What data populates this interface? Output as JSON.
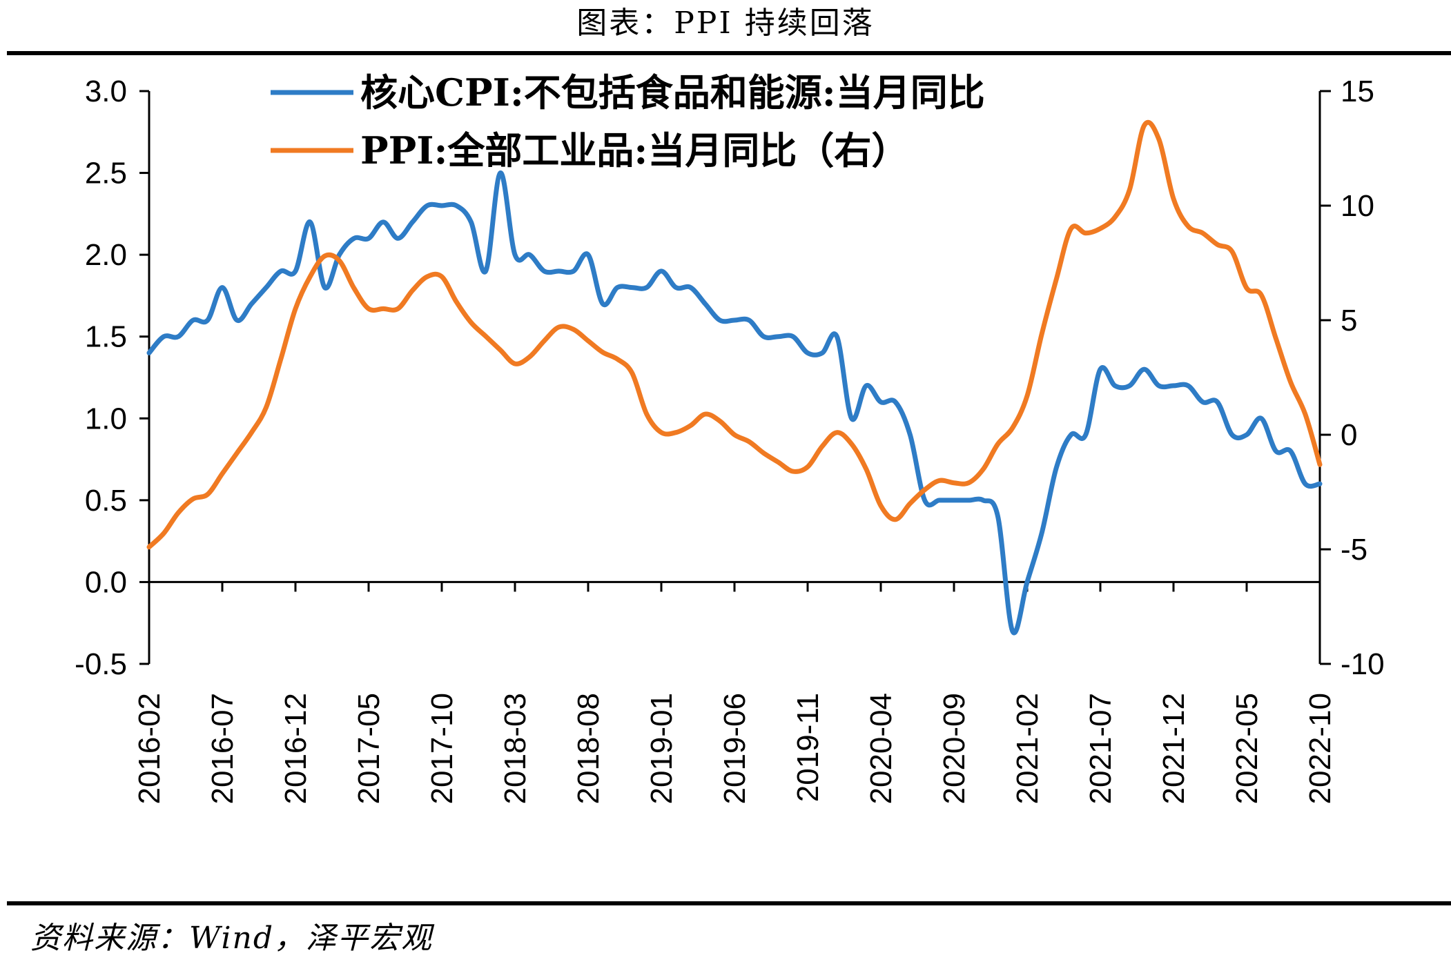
{
  "title": "图表：PPI 持续回落",
  "source": "资料来源：Wind，泽平宏观",
  "colors": {
    "core_cpi": "#2E7CC6",
    "ppi": "#F07A22",
    "axis": "#000000"
  },
  "chart_data": {
    "type": "line",
    "title": "图表：PPI 持续回落",
    "legend_position": "top-center",
    "grid": false,
    "x_tick_labels": [
      "2016-02",
      "2016-07",
      "2016-12",
      "2017-05",
      "2017-10",
      "2018-03",
      "2018-08",
      "2019-01",
      "2019-06",
      "2019-11",
      "2020-04",
      "2020-09",
      "2021-02",
      "2021-07",
      "2021-12",
      "2022-05",
      "2022-10"
    ],
    "x_range": [
      "2016-02",
      "2022-10"
    ],
    "left_axis": {
      "ylim": [
        -0.5,
        3.0
      ],
      "ticks": [
        "-0.5",
        "0.0",
        "0.5",
        "1.0",
        "1.5",
        "2.0",
        "2.5",
        "3.0"
      ]
    },
    "right_axis": {
      "ylim": [
        -10,
        15
      ],
      "ticks": [
        "-10",
        "-5",
        "0",
        "5",
        "10",
        "15"
      ]
    },
    "x": [
      "2016-02",
      "2016-03",
      "2016-04",
      "2016-05",
      "2016-06",
      "2016-07",
      "2016-08",
      "2016-09",
      "2016-10",
      "2016-11",
      "2016-12",
      "2017-01",
      "2017-02",
      "2017-03",
      "2017-04",
      "2017-05",
      "2017-06",
      "2017-07",
      "2017-08",
      "2017-09",
      "2017-10",
      "2017-11",
      "2017-12",
      "2018-01",
      "2018-02",
      "2018-03",
      "2018-04",
      "2018-05",
      "2018-06",
      "2018-07",
      "2018-08",
      "2018-09",
      "2018-10",
      "2018-11",
      "2018-12",
      "2019-01",
      "2019-02",
      "2019-03",
      "2019-04",
      "2019-05",
      "2019-06",
      "2019-07",
      "2019-08",
      "2019-09",
      "2019-10",
      "2019-11",
      "2019-12",
      "2020-01",
      "2020-02",
      "2020-03",
      "2020-04",
      "2020-05",
      "2020-06",
      "2020-07",
      "2020-08",
      "2020-09",
      "2020-10",
      "2020-11",
      "2020-12",
      "2021-01",
      "2021-02",
      "2021-03",
      "2021-04",
      "2021-05",
      "2021-06",
      "2021-07",
      "2021-08",
      "2021-09",
      "2021-10",
      "2021-11",
      "2021-12",
      "2022-01",
      "2022-02",
      "2022-03",
      "2022-04",
      "2022-05",
      "2022-06",
      "2022-07",
      "2022-08",
      "2022-09",
      "2022-10"
    ],
    "series": [
      {
        "name": "核心CPI:不包括食品和能源:当月同比",
        "axis": "left",
        "color": "#2E7CC6",
        "values": [
          1.4,
          1.5,
          1.5,
          1.6,
          1.6,
          1.8,
          1.6,
          1.7,
          1.8,
          1.9,
          1.9,
          2.2,
          1.8,
          2.0,
          2.1,
          2.1,
          2.2,
          2.1,
          2.2,
          2.3,
          2.3,
          2.3,
          2.2,
          1.9,
          2.5,
          2.0,
          2.0,
          1.9,
          1.9,
          1.9,
          2.0,
          1.7,
          1.8,
          1.8,
          1.8,
          1.9,
          1.8,
          1.8,
          1.7,
          1.6,
          1.6,
          1.6,
          1.5,
          1.5,
          1.5,
          1.4,
          1.4,
          1.5,
          1.0,
          1.2,
          1.1,
          1.1,
          0.9,
          0.5,
          0.5,
          0.5,
          0.5,
          0.5,
          0.4,
          -0.3,
          0.0,
          0.3,
          0.7,
          0.9,
          0.9,
          1.3,
          1.2,
          1.2,
          1.3,
          1.2,
          1.2,
          1.2,
          1.1,
          1.1,
          0.9,
          0.9,
          1.0,
          0.8,
          0.8,
          0.6,
          0.6
        ]
      },
      {
        "name": "PPI:全部工业品:当月同比（右）",
        "axis": "right",
        "color": "#F07A22",
        "values": [
          -4.9,
          -4.3,
          -3.4,
          -2.8,
          -2.6,
          -1.7,
          -0.8,
          0.1,
          1.2,
          3.3,
          5.5,
          6.9,
          7.8,
          7.6,
          6.4,
          5.5,
          5.5,
          5.5,
          6.3,
          6.9,
          6.9,
          5.8,
          4.9,
          4.3,
          3.7,
          3.1,
          3.4,
          4.1,
          4.7,
          4.6,
          4.1,
          3.6,
          3.3,
          2.7,
          0.9,
          0.1,
          0.1,
          0.4,
          0.9,
          0.6,
          0.0,
          -0.3,
          -0.8,
          -1.2,
          -1.6,
          -1.4,
          -0.5,
          0.1,
          -0.4,
          -1.5,
          -3.1,
          -3.7,
          -3.0,
          -2.4,
          -2.0,
          -2.1,
          -2.1,
          -1.5,
          -0.4,
          0.3,
          1.7,
          4.4,
          6.8,
          9.0,
          8.8,
          9.0,
          9.5,
          10.7,
          13.5,
          12.9,
          10.3,
          9.1,
          8.8,
          8.3,
          8.0,
          6.4,
          6.1,
          4.2,
          2.3,
          0.9,
          -1.3
        ]
      }
    ]
  }
}
